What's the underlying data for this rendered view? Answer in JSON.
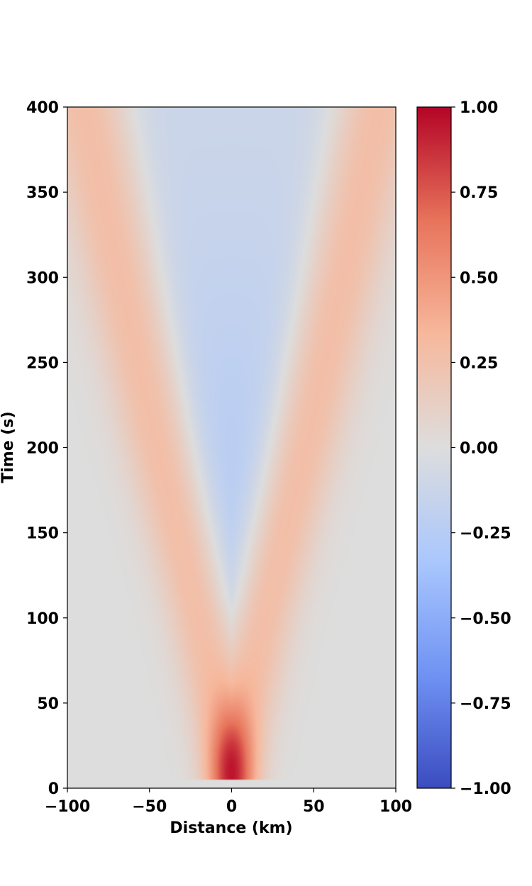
{
  "chart_data": {
    "type": "heatmap",
    "title": "",
    "xlabel": "Distance (km)",
    "ylabel": "Time (s)",
    "xlim": [
      -100,
      100
    ],
    "ylim": [
      0,
      400
    ],
    "x_ticks": [
      -100,
      -50,
      0,
      50,
      100
    ],
    "x_tick_labels": [
      "−100",
      "−50",
      "0",
      "50",
      "100"
    ],
    "y_ticks": [
      0,
      50,
      100,
      150,
      200,
      250,
      300,
      350,
      400
    ],
    "y_tick_labels": [
      "0",
      "50",
      "100",
      "150",
      "200",
      "250",
      "300",
      "350",
      "400"
    ],
    "colormap": "coolwarm",
    "colormap_stops": [
      "#3b4cc0",
      "#6f92f3",
      "#aac7fd",
      "#dddddd",
      "#f7b89c",
      "#e7745b",
      "#b40426"
    ],
    "background_value_color": "#dcdcdc",
    "colorbar": {
      "limits": [
        -1,
        1
      ],
      "ticks": [
        -1,
        -0.75,
        -0.5,
        -0.25,
        0,
        0.25,
        0.5,
        0.75,
        1
      ],
      "tick_labels": [
        "−1.00",
        "−0.75",
        "−0.50",
        "−0.25",
        "0.00",
        "0.25",
        "0.50",
        "0.75",
        "1.00"
      ]
    },
    "field": {
      "description_values": {
        "source_peak": {
          "x": 0,
          "t": 10,
          "value": 1.0
        },
        "wavefront_positive_value": 0.28,
        "interior_negative_min": {
          "x": 0,
          "t": 150,
          "value": -0.25
        },
        "wavefront_x_at_t": [
          {
            "t": 50,
            "x": 10
          },
          {
            "t": 100,
            "x": 20
          },
          {
            "t": 200,
            "x": 45
          },
          {
            "t": 300,
            "x": 68
          },
          {
            "t": 400,
            "x": 90
          }
        ]
      }
    }
  }
}
